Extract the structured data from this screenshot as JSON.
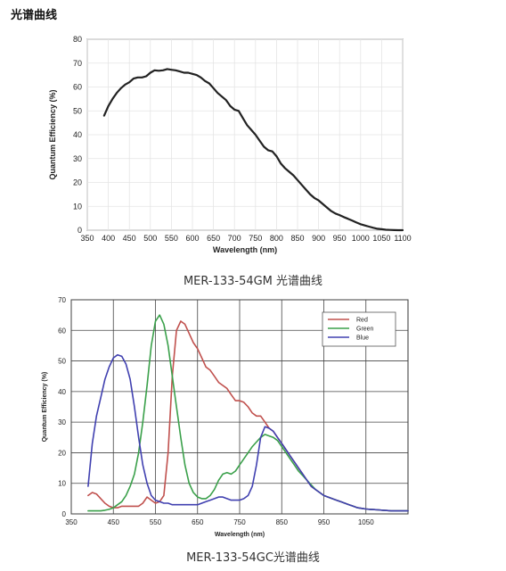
{
  "page": {
    "heading": "光谱曲线"
  },
  "chart_data": [
    {
      "type": "line",
      "caption": "MER-133-54GM 光谱曲线",
      "xlabel": "Wavelength (nm)",
      "ylabel": "Quantum Efficiency (%)",
      "xlim": [
        350,
        1100
      ],
      "ylim": [
        0,
        80
      ],
      "xticks": [
        350,
        400,
        450,
        500,
        550,
        600,
        650,
        700,
        750,
        800,
        850,
        900,
        950,
        1000,
        1050,
        1100
      ],
      "yticks": [
        0,
        10,
        20,
        30,
        40,
        50,
        60,
        70,
        80
      ],
      "grid": true,
      "series": [
        {
          "color": "#222222",
          "x": [
            390,
            400,
            410,
            420,
            430,
            440,
            450,
            460,
            470,
            480,
            490,
            500,
            510,
            520,
            530,
            540,
            550,
            560,
            570,
            580,
            590,
            600,
            610,
            620,
            630,
            640,
            650,
            660,
            670,
            680,
            690,
            700,
            710,
            720,
            730,
            740,
            750,
            760,
            770,
            780,
            790,
            800,
            810,
            820,
            830,
            840,
            850,
            860,
            870,
            880,
            890,
            900,
            910,
            920,
            930,
            940,
            950,
            960,
            970,
            980,
            990,
            1000,
            1010,
            1020,
            1030,
            1040,
            1050,
            1060,
            1070,
            1080,
            1090,
            1100
          ],
          "y": [
            48,
            52,
            55,
            57.5,
            59.5,
            61,
            62,
            63.5,
            64,
            64,
            64.5,
            66,
            67,
            66.8,
            67,
            67.5,
            67.2,
            67,
            66.5,
            66,
            66,
            65.5,
            65,
            64,
            62.5,
            61.5,
            59.5,
            57.5,
            56,
            54.5,
            52,
            50.5,
            50,
            47,
            44,
            42,
            40,
            37.5,
            35,
            33.5,
            33,
            31,
            28,
            26,
            24.5,
            23,
            21,
            19,
            17,
            15,
            13.5,
            12.5,
            11,
            9.5,
            8,
            7,
            6.3,
            5.5,
            4.8,
            4,
            3.2,
            2.5,
            2,
            1.5,
            1,
            0.6,
            0.4,
            0.2,
            0.1,
            0.05,
            0,
            0
          ]
        }
      ]
    },
    {
      "type": "line",
      "caption": "MER-133-54GC光谱曲线",
      "xlabel": "Wavelength (nm)",
      "ylabel": "Quantum Efficiency (%)",
      "xlim": [
        350,
        1150
      ],
      "ylim": [
        0,
        70
      ],
      "xticks": [
        350,
        450,
        550,
        650,
        750,
        850,
        950,
        1050
      ],
      "yticks": [
        0,
        10,
        20,
        30,
        40,
        50,
        60,
        70
      ],
      "grid": true,
      "legend": "top-right",
      "series": [
        {
          "name": "Red",
          "color": "#c0504d",
          "x": [
            390,
            400,
            410,
            420,
            430,
            440,
            450,
            460,
            470,
            480,
            490,
            500,
            510,
            520,
            530,
            540,
            550,
            560,
            570,
            580,
            590,
            600,
            610,
            620,
            630,
            640,
            650,
            660,
            670,
            680,
            690,
            700,
            710,
            720,
            730,
            740,
            750,
            760,
            770,
            780,
            790,
            800,
            810,
            820,
            830,
            840,
            850,
            860,
            870,
            880,
            890,
            900,
            910,
            920,
            930,
            940,
            950,
            960,
            970,
            980,
            990,
            1000,
            1010,
            1020,
            1030,
            1040,
            1050,
            1060,
            1070,
            1080,
            1090,
            1100,
            1110,
            1120,
            1130,
            1140,
            1150
          ],
          "y": [
            6,
            7,
            6.5,
            5,
            3.5,
            2.5,
            2,
            2,
            2.5,
            2.5,
            2.5,
            2.5,
            2.5,
            3.5,
            5.5,
            4.5,
            3.5,
            4,
            6,
            20,
            45,
            60,
            63,
            62,
            59,
            56,
            54,
            51,
            48,
            47,
            45,
            43,
            42,
            41,
            39,
            37,
            37,
            36.5,
            35,
            33,
            32,
            32,
            30,
            28,
            27,
            25,
            23,
            21,
            19,
            17,
            15,
            13,
            11,
            9,
            8,
            7,
            6,
            5.5,
            5,
            4.5,
            4,
            3.5,
            3,
            2.5,
            2,
            1.8,
            1.6,
            1.5,
            1.4,
            1.3,
            1.2,
            1.1,
            1,
            1,
            1,
            1,
            1
          ]
        },
        {
          "name": "Green",
          "color": "#3aa04a",
          "x": [
            390,
            400,
            410,
            420,
            430,
            440,
            450,
            460,
            470,
            480,
            490,
            500,
            510,
            520,
            530,
            540,
            550,
            560,
            570,
            580,
            590,
            600,
            610,
            620,
            630,
            640,
            650,
            660,
            670,
            680,
            690,
            700,
            710,
            720,
            730,
            740,
            750,
            760,
            770,
            780,
            790,
            800,
            810,
            820,
            830,
            840,
            850,
            860,
            870,
            880,
            890,
            900,
            910,
            920,
            930,
            940,
            950,
            960,
            970,
            980,
            990,
            1000,
            1010,
            1020,
            1030,
            1040,
            1050,
            1060,
            1070,
            1080,
            1090,
            1100,
            1110,
            1120,
            1130,
            1140,
            1150
          ],
          "y": [
            1,
            1,
            1,
            1,
            1.2,
            1.5,
            2,
            3,
            4,
            6,
            9,
            13,
            20,
            30,
            42,
            55,
            63,
            65,
            62,
            55,
            45,
            35,
            25,
            16,
            10,
            7,
            5.5,
            5,
            5,
            6,
            8,
            11,
            13,
            13.5,
            13,
            14,
            16,
            18,
            20,
            22,
            23.5,
            25,
            26,
            25.5,
            25,
            24,
            22,
            20,
            18,
            16,
            14,
            12.5,
            11,
            9.5,
            8,
            7,
            6,
            5.5,
            5,
            4.5,
            4,
            3.5,
            3,
            2.5,
            2,
            1.8,
            1.6,
            1.5,
            1.4,
            1.3,
            1.2,
            1.1,
            1,
            1,
            1,
            1,
            1
          ]
        },
        {
          "name": "Blue",
          "color": "#4040b0",
          "x": [
            390,
            400,
            410,
            420,
            430,
            440,
            450,
            460,
            470,
            480,
            490,
            500,
            510,
            520,
            530,
            540,
            550,
            560,
            570,
            580,
            590,
            600,
            610,
            620,
            630,
            640,
            650,
            660,
            670,
            680,
            690,
            700,
            710,
            720,
            730,
            740,
            750,
            760,
            770,
            780,
            790,
            800,
            810,
            820,
            830,
            840,
            850,
            860,
            870,
            880,
            890,
            900,
            910,
            920,
            930,
            940,
            950,
            960,
            970,
            980,
            990,
            1000,
            1010,
            1020,
            1030,
            1040,
            1050,
            1060,
            1070,
            1080,
            1090,
            1100,
            1110,
            1120,
            1130,
            1140,
            1150
          ],
          "y": [
            9,
            23,
            32,
            38,
            44,
            48,
            51,
            52,
            51.5,
            49,
            44,
            35,
            25,
            16,
            10,
            6,
            4.5,
            4,
            3.5,
            3.5,
            3,
            3,
            3,
            3,
            3,
            3,
            3,
            3.5,
            4,
            4.5,
            5,
            5.5,
            5.5,
            5,
            4.5,
            4.5,
            4.5,
            5,
            6,
            9,
            16,
            25,
            28.5,
            28,
            27,
            25,
            23,
            21,
            19,
            17,
            15,
            13,
            11,
            9,
            8,
            7,
            6,
            5.5,
            5,
            4.5,
            4,
            3.5,
            3,
            2.5,
            2,
            1.8,
            1.6,
            1.5,
            1.4,
            1.3,
            1.2,
            1.1,
            1,
            1,
            1,
            1,
            1
          ]
        }
      ]
    }
  ]
}
